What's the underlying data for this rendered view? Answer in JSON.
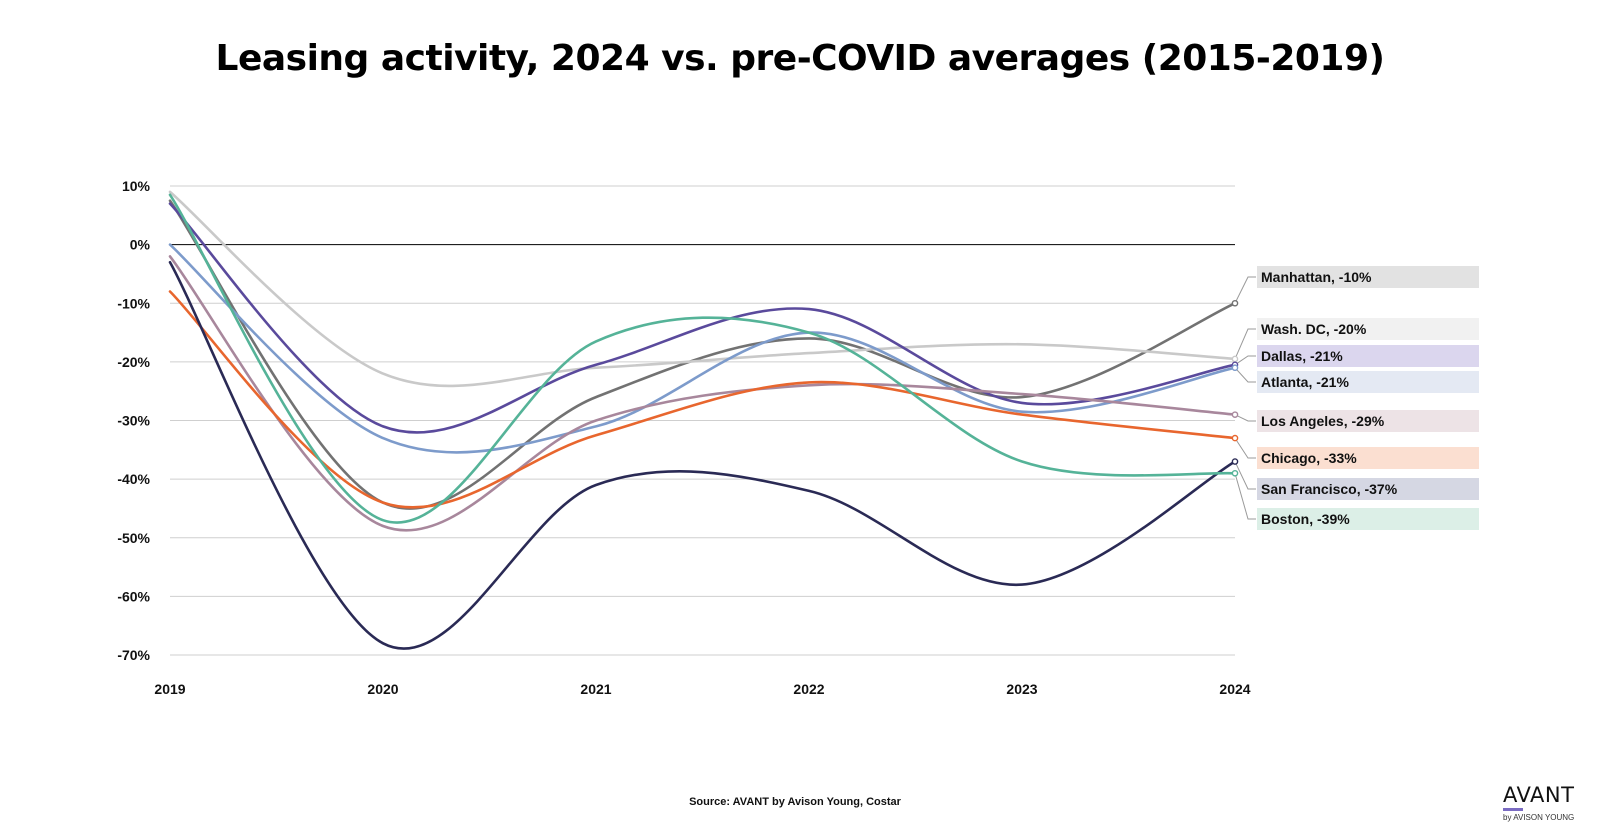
{
  "title": "Leasing activity, 2024 vs. pre-COVID averages (2015-2019)",
  "source": "Source: AVANT by Avison Young, Costar",
  "brand": {
    "name": "AVANT",
    "sub": "by AVISON YOUNG"
  },
  "chart_data": {
    "type": "line",
    "title": "Leasing activity, 2024 vs. pre-COVID averages (2015-2019)",
    "xlabel": "",
    "ylabel": "",
    "x": [
      2019,
      2020,
      2021,
      2022,
      2023,
      2024
    ],
    "x_tick_labels": [
      "2019",
      "2020",
      "2021",
      "2022",
      "2023",
      "2024"
    ],
    "ylim": [
      -70,
      10
    ],
    "y_ticks": [
      10,
      0,
      -10,
      -20,
      -30,
      -40,
      -50,
      -60,
      -70
    ],
    "y_tick_labels": [
      "10%",
      "0%",
      "-10%",
      "-20%",
      "-30%",
      "-40%",
      "-50%",
      "-60%",
      "-70%"
    ],
    "grid": true,
    "legend": "end-of-line labels, right",
    "series": [
      {
        "name": "Manhattan",
        "values": [
          7.5,
          -44,
          -26,
          -16,
          -26,
          -10
        ],
        "color": "#727272",
        "label": "Manhattan, -10%",
        "label_bg": "#e2e2e2"
      },
      {
        "name": "Wash. DC",
        "values": [
          9,
          -22,
          -21,
          -18.5,
          -17,
          -19.5
        ],
        "color": "#c9c9c9",
        "label": "Wash. DC, -20%",
        "label_bg": "#f1f1f1"
      },
      {
        "name": "Dallas",
        "values": [
          7,
          -31,
          -20.5,
          -11,
          -27,
          -20.5
        ],
        "color": "#5a4a9c",
        "label": "Dallas, -21%",
        "label_bg": "#dbd6ee"
      },
      {
        "name": "Atlanta",
        "values": [
          0,
          -33,
          -31,
          -15,
          -28.5,
          -21
        ],
        "color": "#7d9bcb",
        "label": "Atlanta, -21%",
        "label_bg": "#e4e9f3"
      },
      {
        "name": "Los Angeles",
        "values": [
          -2,
          -48,
          -30,
          -24,
          -25.5,
          -29
        ],
        "color": "#a8879c",
        "label": "Los Angeles, -29%",
        "label_bg": "#ede3e6"
      },
      {
        "name": "Chicago",
        "values": [
          -8,
          -44,
          -32.5,
          -23.5,
          -29,
          -33
        ],
        "color": "#e8662e",
        "label": "Chicago, -33%",
        "label_bg": "#fbdfd1"
      },
      {
        "name": "San Francisco",
        "values": [
          -3,
          -68,
          -41,
          -42,
          -58,
          -37
        ],
        "color": "#2a2a55",
        "label": "San Francisco, -37%",
        "label_bg": "#d5d7e3"
      },
      {
        "name": "Boston",
        "values": [
          8.5,
          -47,
          -16.5,
          -15,
          -37,
          -39
        ],
        "color": "#55b398",
        "label": "Boston, -39%",
        "label_bg": "#dcefe7"
      }
    ]
  }
}
